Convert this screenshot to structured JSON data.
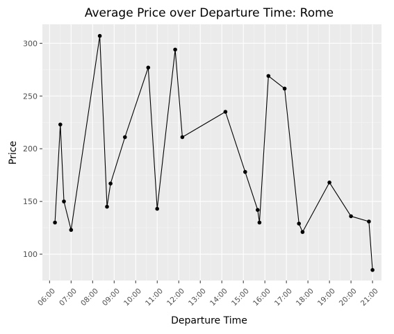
{
  "chart_data": {
    "type": "line",
    "title": "Average Price over Departure Time: Rome",
    "xlabel": "Departure Time",
    "ylabel": "Price",
    "x_tick_labels": [
      "06:00",
      "07:00",
      "08:00",
      "09:00",
      "10:00",
      "11:00",
      "12:00",
      "13:00",
      "14:00",
      "15:00",
      "16:00",
      "17:00",
      "18:00",
      "19:00",
      "20:00",
      "21:00"
    ],
    "y_ticks": [
      100,
      150,
      200,
      250,
      300
    ],
    "xlim": [
      "05:40",
      "21:25"
    ],
    "ylim": [
      75,
      318
    ],
    "grid": true,
    "legend": "none",
    "series": [
      {
        "color": "#000000",
        "points": [
          {
            "x": "06:15",
            "y": 130
          },
          {
            "x": "06:30",
            "y": 223
          },
          {
            "x": "06:40",
            "y": 150
          },
          {
            "x": "07:00",
            "y": 123
          },
          {
            "x": "08:20",
            "y": 307
          },
          {
            "x": "08:40",
            "y": 145
          },
          {
            "x": "08:50",
            "y": 167
          },
          {
            "x": "09:30",
            "y": 211
          },
          {
            "x": "10:35",
            "y": 277
          },
          {
            "x": "11:00",
            "y": 143
          },
          {
            "x": "11:50",
            "y": 294
          },
          {
            "x": "12:10",
            "y": 211
          },
          {
            "x": "14:10",
            "y": 235
          },
          {
            "x": "15:05",
            "y": 178
          },
          {
            "x": "15:40",
            "y": 142
          },
          {
            "x": "15:45",
            "y": 130
          },
          {
            "x": "16:10",
            "y": 269
          },
          {
            "x": "16:55",
            "y": 257
          },
          {
            "x": "17:35",
            "y": 129
          },
          {
            "x": "17:45",
            "y": 121
          },
          {
            "x": "19:00",
            "y": 168
          },
          {
            "x": "20:00",
            "y": 136
          },
          {
            "x": "20:50",
            "y": 131
          },
          {
            "x": "21:00",
            "y": 85
          }
        ]
      }
    ],
    "colors": {
      "panel_background": "#ebebeb",
      "grid_major": "#ffffff",
      "grid_minor": "#f5f5f5",
      "axis_text": "#4d4d4d",
      "line": "#000000"
    }
  }
}
